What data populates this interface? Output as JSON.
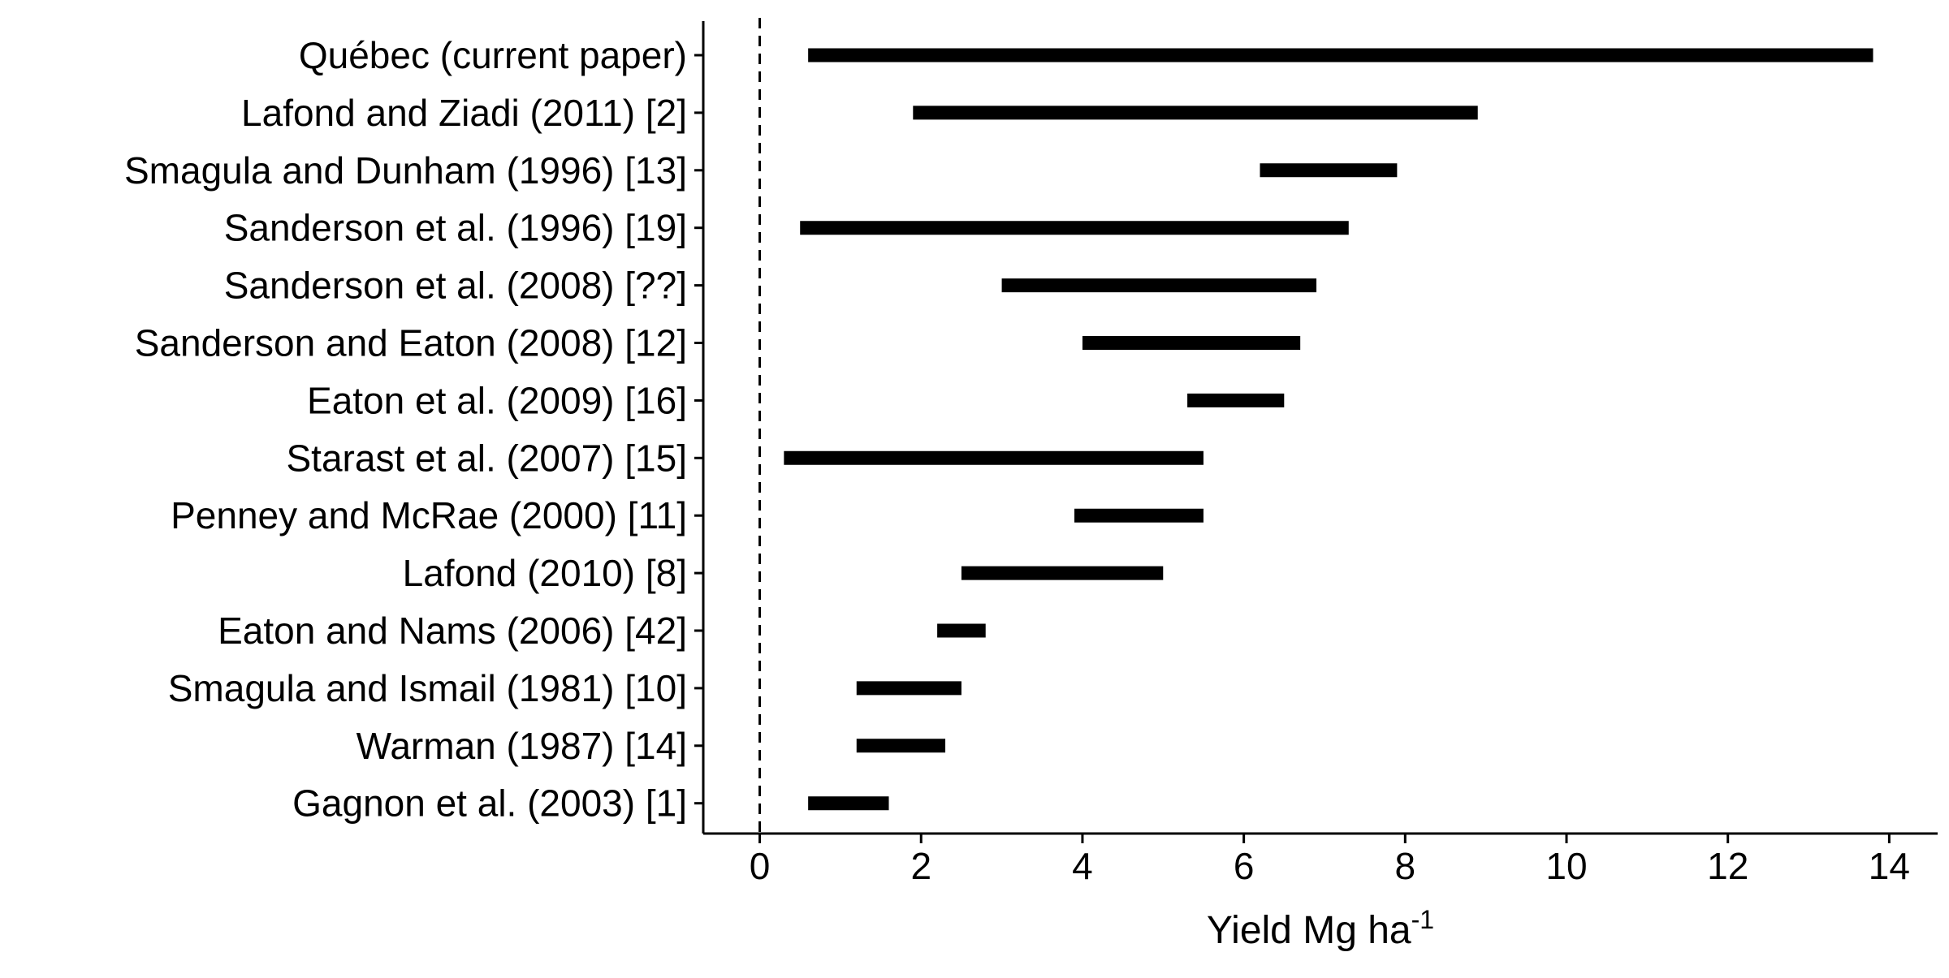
{
  "chart_data": {
    "type": "range-bar",
    "xlabel": "Yield Mg ha",
    "xlabel_superscript": "-1",
    "xlim": [
      -0.7,
      14.6
    ],
    "x_ticks": [
      0,
      2,
      4,
      6,
      8,
      10,
      12,
      14
    ],
    "reference_line": {
      "x": 0,
      "style": "dashed"
    },
    "grid": false,
    "legend": "none",
    "bar_color": "#000000",
    "series": [
      {
        "label": "Québec (current paper)",
        "start": 0.6,
        "end": 13.8
      },
      {
        "label": "Lafond and Ziadi (2011) [2]",
        "start": 1.9,
        "end": 8.9
      },
      {
        "label": "Smagula and Dunham (1996) [13]",
        "start": 6.2,
        "end": 7.9
      },
      {
        "label": "Sanderson et al. (1996) [19]",
        "start": 0.5,
        "end": 7.3
      },
      {
        "label": "Sanderson et al. (2008) [??]",
        "start": 3.0,
        "end": 6.9
      },
      {
        "label": "Sanderson and Eaton (2008) [12]",
        "start": 4.0,
        "end": 6.7
      },
      {
        "label": "Eaton et al. (2009) [16]",
        "start": 5.3,
        "end": 6.5
      },
      {
        "label": "Starast et al. (2007) [15]",
        "start": 0.3,
        "end": 5.5
      },
      {
        "label": "Penney and McRae (2000) [11]",
        "start": 3.9,
        "end": 5.5
      },
      {
        "label": "Lafond (2010) [8]",
        "start": 2.5,
        "end": 5.0
      },
      {
        "label": "Eaton and Nams (2006) [42]",
        "start": 2.2,
        "end": 2.8
      },
      {
        "label": "Smagula and Ismail (1981) [10]",
        "start": 1.2,
        "end": 2.5
      },
      {
        "label": "Warman (1987) [14]",
        "start": 1.2,
        "end": 2.3
      },
      {
        "label": "Gagnon et al. (2003) [1]",
        "start": 0.6,
        "end": 1.6
      }
    ]
  }
}
